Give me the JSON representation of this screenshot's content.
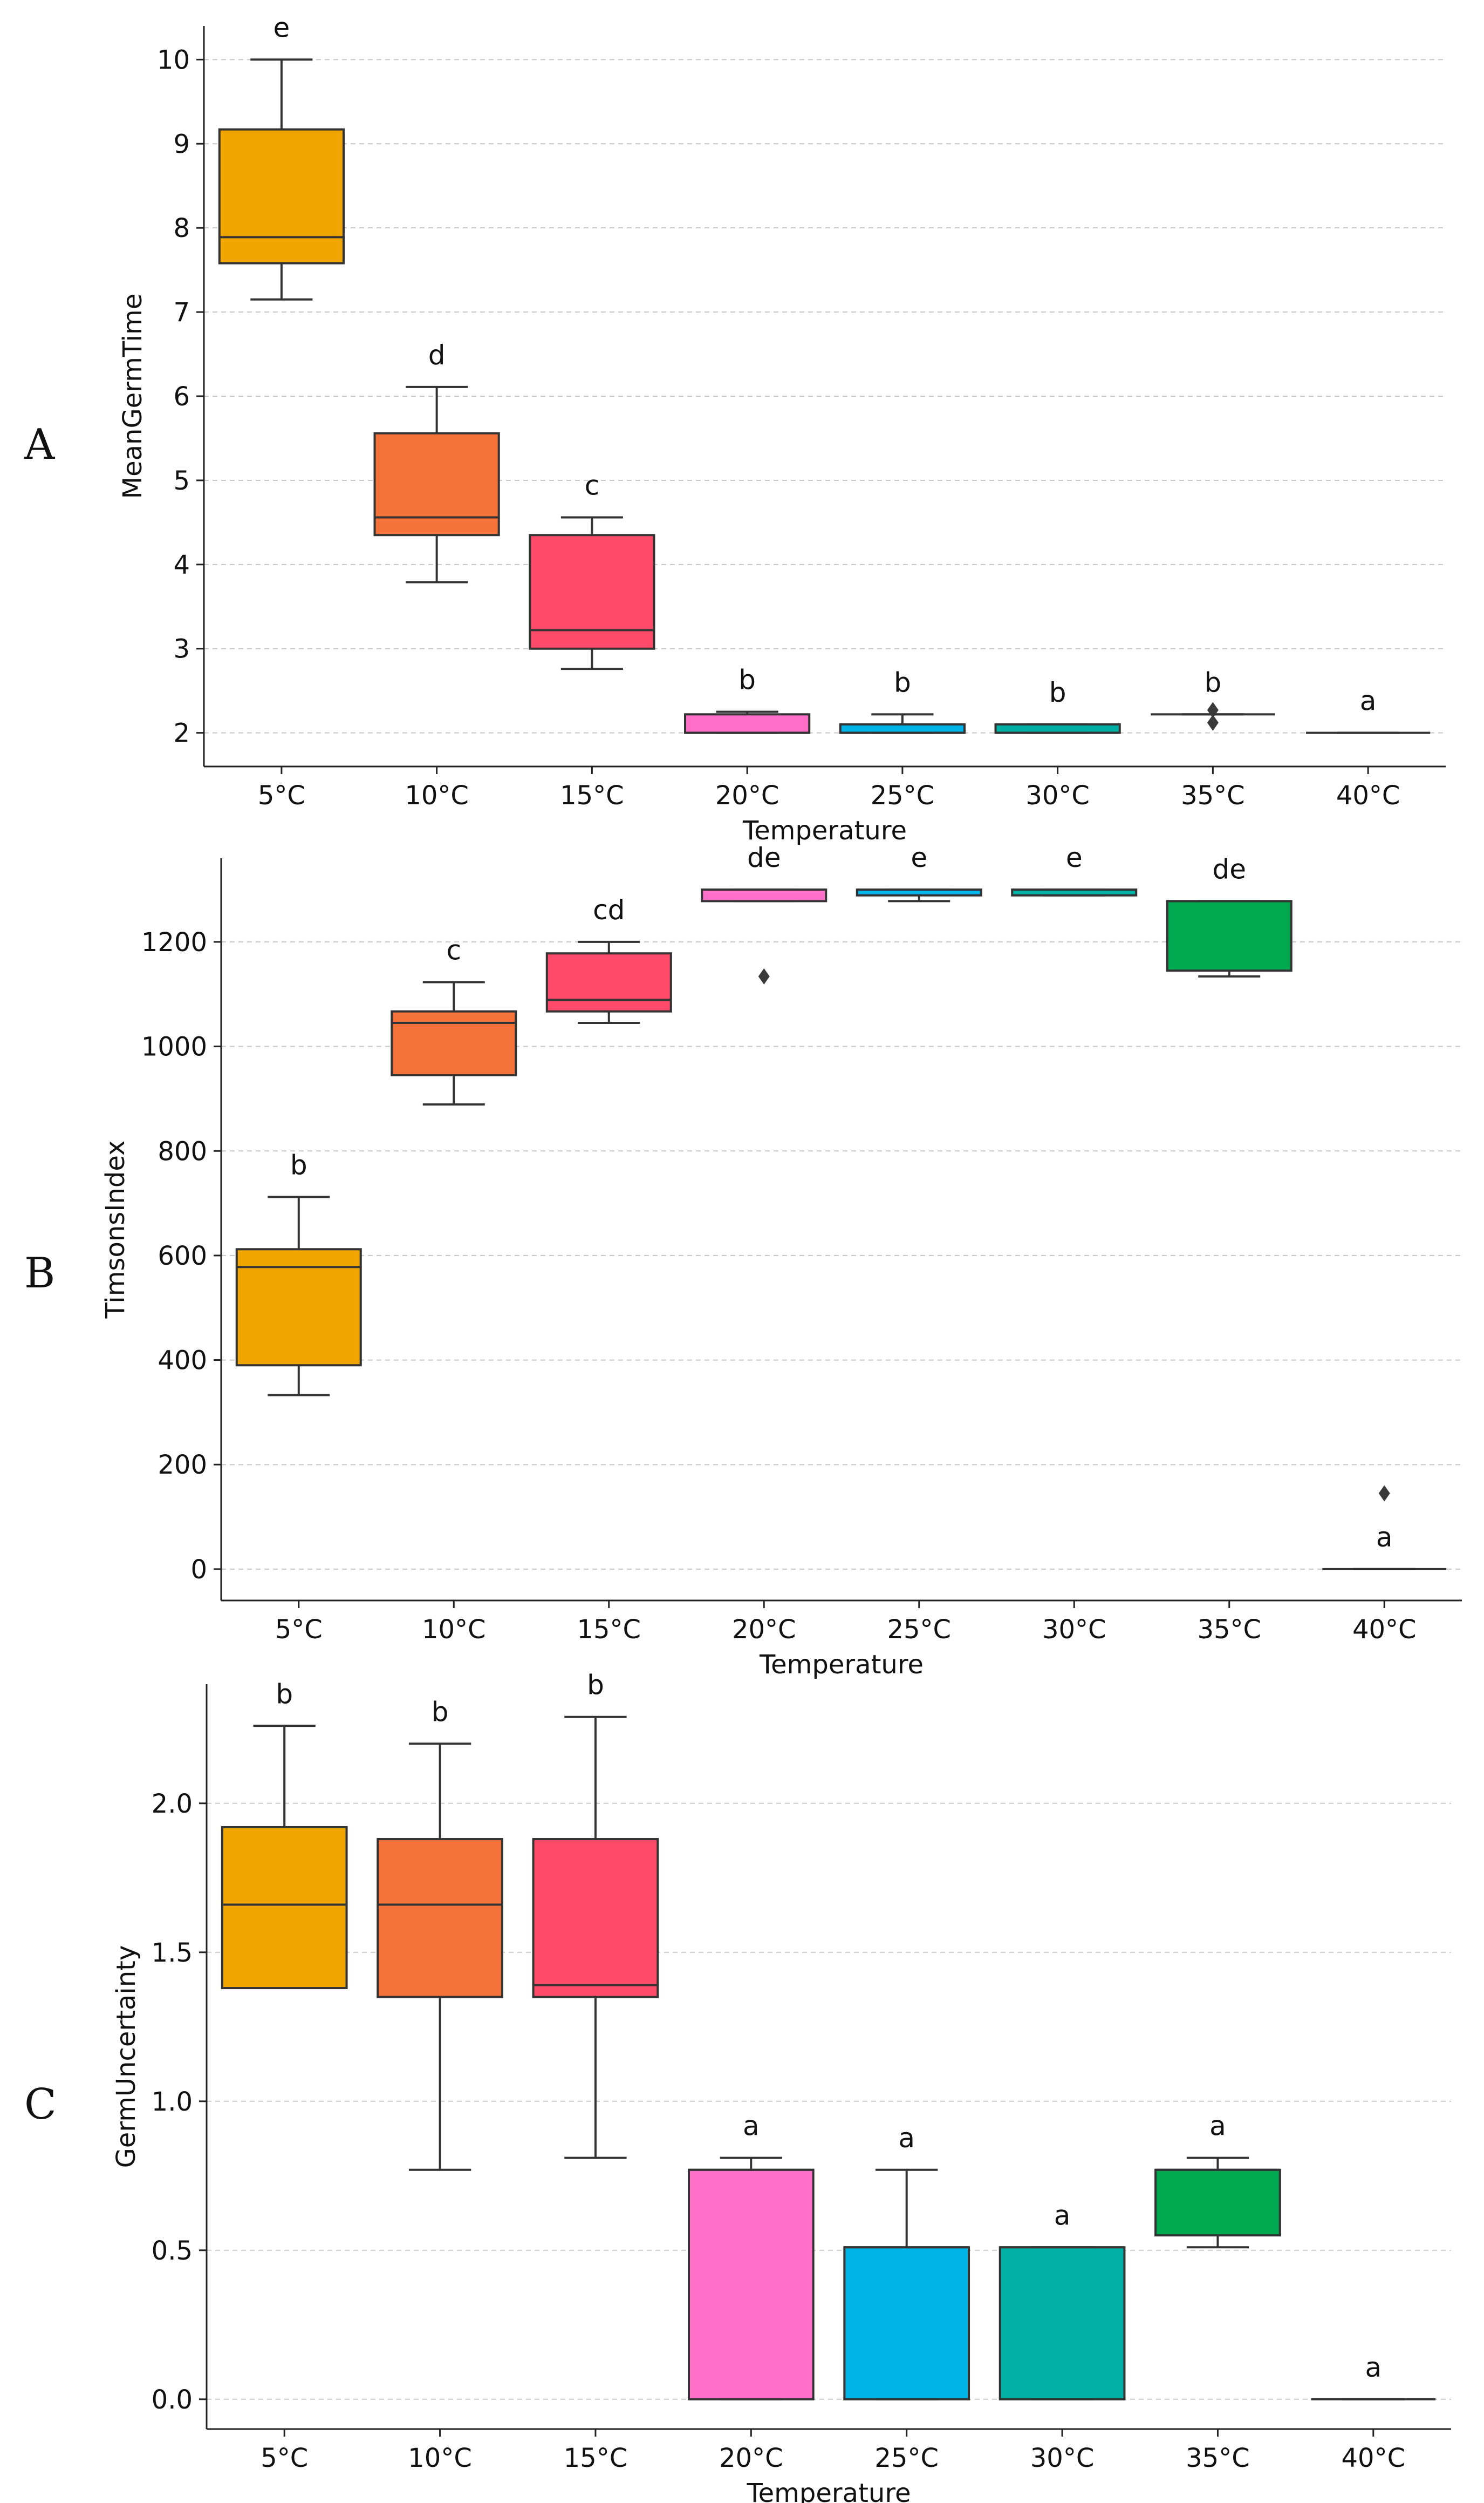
{
  "chart_data": [
    {
      "type": "box",
      "panel_label": "A",
      "xlabel": "Temperature",
      "ylabel": "MeanGermTime",
      "categories": [
        "5°C",
        "10°C",
        "15°C",
        "20°C",
        "25°C",
        "30°C",
        "35°C",
        "40°C"
      ],
      "ylim": [
        1.6,
        10.4
      ],
      "yticks": [
        2,
        3,
        4,
        5,
        6,
        7,
        8,
        9,
        10
      ],
      "ytick_labels": [
        "2",
        "3",
        "4",
        "5",
        "6",
        "7",
        "8",
        "9",
        "10"
      ],
      "grid": "y-dashed",
      "boxes": [
        {
          "category": "5°C",
          "whisker_low": 7.15,
          "q1": 7.58,
          "median": 7.89,
          "q3": 9.17,
          "whisker_high": 10.0,
          "outliers": [],
          "letter": "e",
          "color": "#f0a500"
        },
        {
          "category": "10°C",
          "whisker_low": 3.79,
          "q1": 4.35,
          "median": 4.56,
          "q3": 5.56,
          "whisker_high": 6.11,
          "outliers": [],
          "letter": "d",
          "color": "#f5733a"
        },
        {
          "category": "15°C",
          "whisker_low": 2.76,
          "q1": 3.0,
          "median": 3.22,
          "q3": 4.35,
          "whisker_high": 4.56,
          "outliers": [],
          "letter": "c",
          "color": "#ff4a6a"
        },
        {
          "category": "20°C",
          "whisker_low": 2.0,
          "q1": 2.0,
          "median": 2.0,
          "q3": 2.22,
          "whisker_high": 2.25,
          "outliers": [],
          "letter": "b",
          "color": "#ff6ec7"
        },
        {
          "category": "25°C",
          "whisker_low": 2.0,
          "q1": 2.0,
          "median": 2.0,
          "q3": 2.1,
          "whisker_high": 2.22,
          "outliers": [],
          "letter": "b",
          "color": "#00b4e8"
        },
        {
          "category": "30°C",
          "whisker_low": 2.0,
          "q1": 2.0,
          "median": 2.0,
          "q3": 2.1,
          "whisker_high": 2.1,
          "outliers": [],
          "letter": "b",
          "color": "#00b0a4"
        },
        {
          "category": "35°C",
          "whisker_low": 2.22,
          "q1": 2.22,
          "median": 2.22,
          "q3": 2.22,
          "whisker_high": 2.22,
          "outliers": [
            2.27,
            2.12
          ],
          "letter": "b",
          "color": "#00a850"
        },
        {
          "category": "40°C",
          "whisker_low": 2.0,
          "q1": 2.0,
          "median": 2.0,
          "q3": 2.0,
          "whisker_high": 2.0,
          "outliers": [],
          "letter": "a",
          "color": "#f0a500"
        }
      ]
    },
    {
      "type": "box",
      "panel_label": "B",
      "xlabel": "Temperature",
      "ylabel": "TimsonsIndex",
      "categories": [
        "5°C",
        "10°C",
        "15°C",
        "20°C",
        "25°C",
        "30°C",
        "35°C",
        "40°C"
      ],
      "ylim": [
        -60,
        1360
      ],
      "yticks": [
        0,
        200,
        400,
        600,
        800,
        1000,
        1200
      ],
      "ytick_labels": [
        "0",
        "200",
        "400",
        "600",
        "800",
        "1000",
        "1200"
      ],
      "grid": "y-dashed",
      "boxes": [
        {
          "category": "5°C",
          "whisker_low": 333,
          "q1": 390,
          "median": 578,
          "q3": 612,
          "whisker_high": 712,
          "outliers": [],
          "letter": "b",
          "color": "#f0a500"
        },
        {
          "category": "10°C",
          "whisker_low": 889,
          "q1": 945,
          "median": 1045,
          "q3": 1067,
          "whisker_high": 1123,
          "outliers": [],
          "letter": "c",
          "color": "#f5733a"
        },
        {
          "category": "15°C",
          "whisker_low": 1045,
          "q1": 1067,
          "median": 1089,
          "q3": 1178,
          "whisker_high": 1200,
          "outliers": [],
          "letter": "cd",
          "color": "#ff4a6a"
        },
        {
          "category": "20°C",
          "whisker_low": 1278,
          "q1": 1278,
          "median": 1300,
          "q3": 1300,
          "whisker_high": 1300,
          "outliers": [
            1134
          ],
          "letter": "de",
          "color": "#ff6ec7"
        },
        {
          "category": "25°C",
          "whisker_low": 1278,
          "q1": 1289,
          "median": 1300,
          "q3": 1300,
          "whisker_high": 1300,
          "outliers": [],
          "letter": "e",
          "color": "#00b4e8"
        },
        {
          "category": "30°C",
          "whisker_low": 1289,
          "q1": 1289,
          "median": 1300,
          "q3": 1300,
          "whisker_high": 1300,
          "outliers": [],
          "letter": "e",
          "color": "#00b0a4"
        },
        {
          "category": "35°C",
          "whisker_low": 1134,
          "q1": 1145,
          "median": 1278,
          "q3": 1278,
          "whisker_high": 1278,
          "outliers": [],
          "letter": "de",
          "color": "#00a850"
        },
        {
          "category": "40°C",
          "whisker_low": 0,
          "q1": 0,
          "median": 0,
          "q3": 0,
          "whisker_high": 0,
          "outliers": [
            145
          ],
          "letter": "a",
          "color": "#f0a500"
        }
      ]
    },
    {
      "type": "box",
      "panel_label": "C",
      "xlabel": "Temperature",
      "ylabel": "GermUncertainty",
      "categories": [
        "5°C",
        "10°C",
        "15°C",
        "20°C",
        "25°C",
        "30°C",
        "35°C",
        "40°C"
      ],
      "ylim": [
        -0.1,
        2.4
      ],
      "yticks": [
        0.0,
        0.5,
        1.0,
        1.5,
        2.0
      ],
      "ytick_labels": [
        "0.0",
        "0.5",
        "1.0",
        "1.5",
        "2.0"
      ],
      "grid": "y-dashed",
      "boxes": [
        {
          "category": "5°C",
          "whisker_low": 1.38,
          "q1": 1.38,
          "median": 1.66,
          "q3": 1.92,
          "whisker_high": 2.26,
          "outliers": [],
          "letter": "b",
          "color": "#f0a500"
        },
        {
          "category": "10°C",
          "whisker_low": 0.77,
          "q1": 1.35,
          "median": 1.66,
          "q3": 1.88,
          "whisker_high": 2.2,
          "outliers": [],
          "letter": "b",
          "color": "#f5733a"
        },
        {
          "category": "15°C",
          "whisker_low": 0.81,
          "q1": 1.35,
          "median": 1.39,
          "q3": 1.88,
          "whisker_high": 2.29,
          "outliers": [],
          "letter": "b",
          "color": "#ff4a6a"
        },
        {
          "category": "20°C",
          "whisker_low": 0.0,
          "q1": 0.0,
          "median": 0.77,
          "q3": 0.77,
          "whisker_high": 0.81,
          "outliers": [],
          "letter": "a",
          "color": "#ff6ec7"
        },
        {
          "category": "25°C",
          "whisker_low": 0.0,
          "q1": 0.0,
          "median": 0.51,
          "q3": 0.51,
          "whisker_high": 0.77,
          "outliers": [],
          "letter": "a",
          "color": "#00b4e8"
        },
        {
          "category": "30°C",
          "whisker_low": 0.0,
          "q1": 0.0,
          "median": 0.51,
          "q3": 0.51,
          "whisker_high": 0.51,
          "outliers": [],
          "letter": "a",
          "color": "#00b0a4"
        },
        {
          "category": "35°C",
          "whisker_low": 0.51,
          "q1": 0.55,
          "median": 0.77,
          "q3": 0.77,
          "whisker_high": 0.81,
          "outliers": [],
          "letter": "a",
          "color": "#00a850"
        },
        {
          "category": "40°C",
          "whisker_low": 0.0,
          "q1": 0.0,
          "median": 0.0,
          "q3": 0.0,
          "whisker_high": 0.0,
          "outliers": [],
          "letter": "a",
          "color": "#f0a500"
        }
      ]
    }
  ]
}
